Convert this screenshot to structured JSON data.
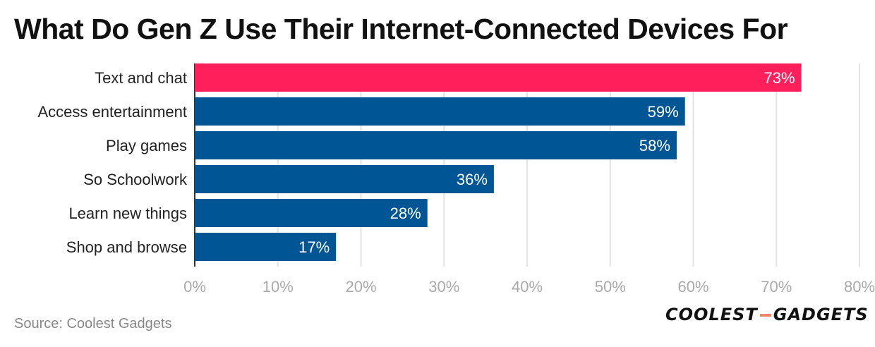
{
  "title": "What Do Gen Z Use Their Internet-Connected Devices For",
  "source": "Source: Coolest Gadgets",
  "logo": {
    "left": "COOLEST",
    "right": "GADGETS",
    "accent_color": "#f0886c"
  },
  "colors": {
    "highlight": "#ff1f5a",
    "bar": "#005694",
    "grid": "#e3e3e3",
    "tick": "#a9a9a9"
  },
  "chart_data": {
    "type": "bar",
    "orientation": "horizontal",
    "title": "What Do Gen Z Use Their Internet-Connected Devices For",
    "categories": [
      "Text and chat",
      "Access entertainment",
      "Play games",
      "So Schoolwork",
      "Learn new things",
      "Shop and browse"
    ],
    "values": [
      73,
      59,
      58,
      36,
      28,
      17
    ],
    "value_labels": [
      "73%",
      "59%",
      "58%",
      "36%",
      "28%",
      "17%"
    ],
    "highlight_index": 0,
    "xlim": [
      0,
      80
    ],
    "xticks": [
      0,
      10,
      20,
      30,
      40,
      50,
      60,
      70,
      80
    ],
    "xtick_labels": [
      "0%",
      "10%",
      "20%",
      "30%",
      "40%",
      "50%",
      "60%",
      "70%",
      "80%"
    ],
    "grid": true
  }
}
